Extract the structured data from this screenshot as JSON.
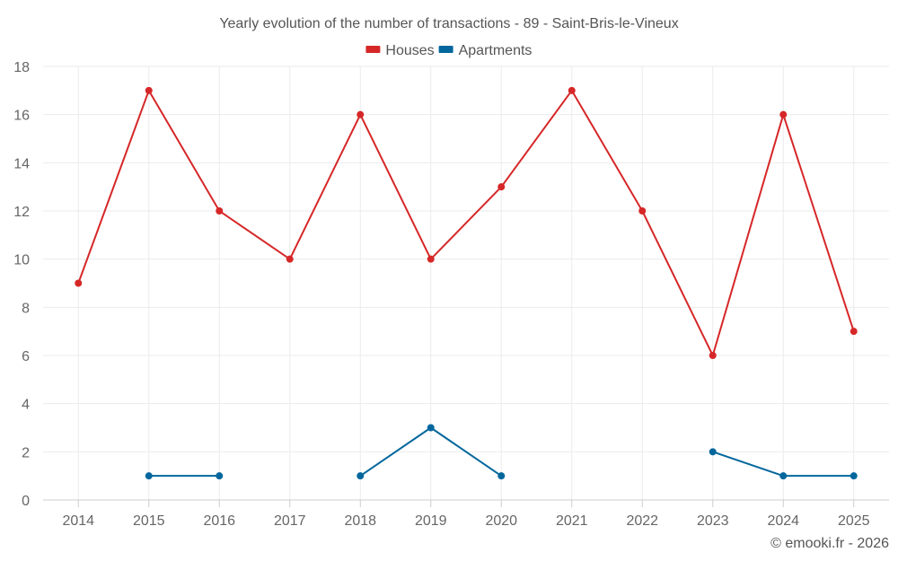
{
  "chart_data": {
    "type": "line",
    "title": "Yearly evolution of the number of transactions - 89 - Saint-Bris-le-Vineux",
    "categories": [
      "2014",
      "2015",
      "2016",
      "2017",
      "2018",
      "2019",
      "2020",
      "2021",
      "2022",
      "2023",
      "2024",
      "2025"
    ],
    "ylim": [
      0,
      18
    ],
    "yticks": [
      0,
      2,
      4,
      6,
      8,
      10,
      12,
      14,
      16,
      18
    ],
    "grid": true,
    "legend_position": "top-center",
    "series": [
      {
        "name": "Houses",
        "color": "#d62728",
        "values": [
          9,
          17,
          12,
          10,
          16,
          10,
          13,
          17,
          12,
          6,
          16,
          7
        ]
      },
      {
        "name": "Apartments",
        "color": "#03679d",
        "values": [
          null,
          1,
          1,
          null,
          1,
          3,
          1,
          null,
          null,
          2,
          1,
          1
        ]
      }
    ]
  },
  "credit": "© emooki.fr - 2026"
}
